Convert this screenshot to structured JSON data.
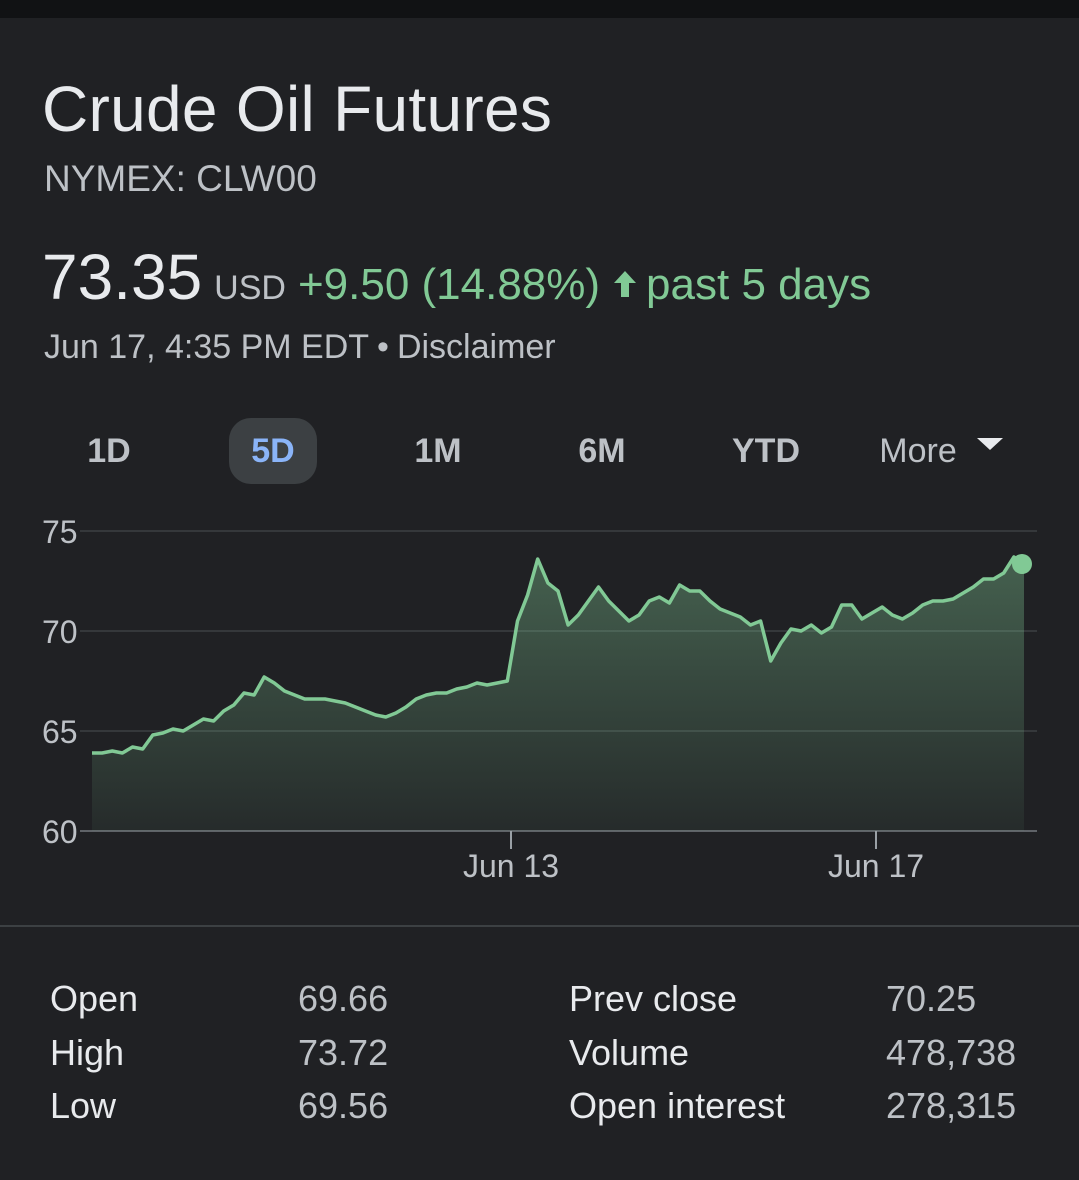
{
  "header": {
    "title": "Crude Oil Futures",
    "ticker": "NYMEX: CLW00"
  },
  "quote": {
    "price": "73.35",
    "currency": "USD",
    "change": "+9.50 (14.88%)",
    "period": "past 5 days",
    "timestamp": "Jun 17, 4:35 PM EDT",
    "separator": "•",
    "disclaimer": "Disclaimer"
  },
  "ranges": {
    "tabs": [
      "1D",
      "5D",
      "1M",
      "6M",
      "YTD"
    ],
    "active": "5D",
    "more_label": "More"
  },
  "colors": {
    "positive": "#81c995",
    "active_tab_bg": "#3c4043",
    "active_tab_text": "#8ab4f8"
  },
  "chart_data": {
    "type": "area",
    "title": "",
    "xlabel": "",
    "ylabel": "",
    "ylim": [
      60,
      75
    ],
    "yticks": [
      75,
      70,
      65,
      60
    ],
    "xtick_labels": [
      "Jun 13",
      "Jun 17"
    ],
    "grid": true,
    "series": [
      {
        "values": [
          63.9,
          63.9,
          64.0,
          63.9,
          64.2,
          64.1,
          64.8,
          64.9,
          65.1,
          65.0,
          65.3,
          65.6,
          65.5,
          66.0,
          66.3,
          66.9,
          66.8,
          67.7,
          67.4,
          67.0,
          66.8,
          66.6,
          66.6,
          66.6,
          66.5,
          66.4,
          66.2,
          66.0,
          65.8,
          65.7,
          65.9,
          66.2,
          66.6,
          66.8,
          66.9,
          66.9,
          67.1,
          67.2,
          67.4,
          67.3,
          67.4,
          67.5,
          70.5,
          71.8,
          73.6,
          72.4,
          72.0,
          70.3,
          70.8,
          71.5,
          72.2,
          71.5,
          71.0,
          70.5,
          70.8,
          71.5,
          71.7,
          71.4,
          72.3,
          72.0,
          72.0,
          71.5,
          71.1,
          70.9,
          70.7,
          70.3,
          70.5,
          68.5,
          69.4,
          70.1,
          70.0,
          70.3,
          69.9,
          70.2,
          71.3,
          71.3,
          70.6,
          70.9,
          71.2,
          70.8,
          70.6,
          70.9,
          71.3,
          71.5,
          71.5,
          71.6,
          71.9,
          72.2,
          72.6,
          72.6,
          72.9,
          73.7,
          73.35
        ]
      }
    ],
    "last_point": 73.35
  },
  "stats": {
    "left": [
      {
        "label": "Open",
        "value": "69.66"
      },
      {
        "label": "High",
        "value": "73.72"
      },
      {
        "label": "Low",
        "value": "69.56"
      }
    ],
    "right": [
      {
        "label": "Prev close",
        "value": "70.25"
      },
      {
        "label": "Volume",
        "value": "478,738"
      },
      {
        "label": "Open interest",
        "value": "278,315"
      }
    ]
  }
}
